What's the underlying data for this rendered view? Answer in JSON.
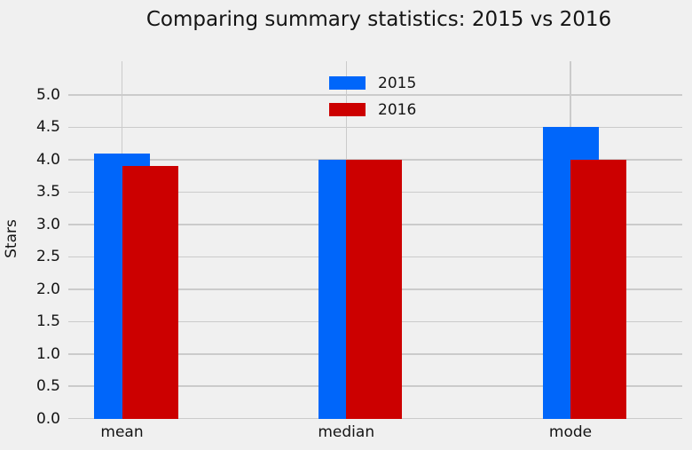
{
  "chart_data": {
    "type": "bar",
    "title": "Comparing summary statistics: 2015 vs 2016",
    "xlabel": "",
    "ylabel": "Stars",
    "categories": [
      "mean",
      "median",
      "mode"
    ],
    "series": [
      {
        "name": "2015",
        "color": "#0066fa",
        "values": [
          4.1,
          4.0,
          4.5
        ]
      },
      {
        "name": "2016",
        "color": "#cc0000",
        "values": [
          3.9,
          4.0,
          4.0
        ]
      }
    ],
    "yticks": [
      0.0,
      0.5,
      1.0,
      1.5,
      2.0,
      2.5,
      3.0,
      3.5,
      4.0,
      4.5,
      5.0
    ],
    "ytick_labels": [
      "0.0",
      "0.5",
      "1.0",
      "1.5",
      "2.0",
      "2.5",
      "3.0",
      "3.5",
      "4.0",
      "4.5",
      "5.0"
    ],
    "ylim": [
      0,
      5.5
    ],
    "grid": true,
    "legend_position": "upper center",
    "bar_layout": "overlapping-offset",
    "colors": {
      "background": "#f0f0f0",
      "gridline": "#cbcbcb",
      "text": "#141414"
    }
  }
}
